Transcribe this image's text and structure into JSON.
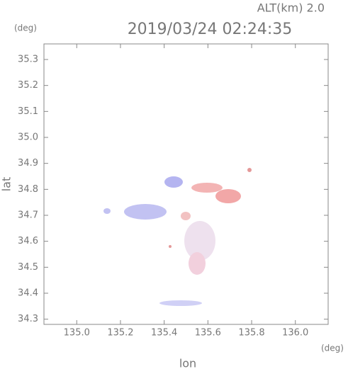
{
  "chart_data": {
    "type": "image",
    "title": "2019/03/24 02:24:35",
    "subtitle": "ALT(km) 2.0",
    "xlabel": "lon",
    "ylabel": "lat",
    "xunit": "(deg)",
    "yunit": "(deg)",
    "xlim": [
      134.85,
      136.15
    ],
    "ylim": [
      34.28,
      35.36
    ],
    "xticks": [
      {
        "value": 135,
        "label": "135.0"
      },
      135.2,
      135.4,
      135.6,
      135.8,
      {
        "value": 136,
        "label": "136.0"
      }
    ],
    "yticks": [
      34.3,
      34.4,
      34.5,
      34.6,
      34.7,
      34.8,
      34.9,
      {
        "value": 35,
        "label": "35.0"
      },
      35.1,
      35.2,
      35.3
    ],
    "grid": false
  }
}
